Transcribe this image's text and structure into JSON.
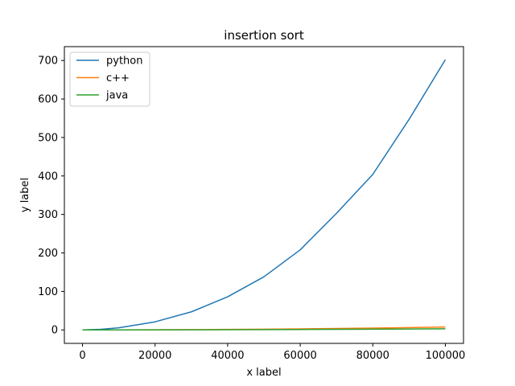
{
  "chart_data": {
    "type": "line",
    "title": "insertion sort",
    "xlabel": "x label",
    "ylabel": "y label",
    "xlim": [
      -5000,
      105000
    ],
    "ylim": [
      -35,
      736
    ],
    "xticks": [
      0,
      20000,
      40000,
      60000,
      80000,
      100000
    ],
    "yticks": [
      0,
      100,
      200,
      300,
      400,
      500,
      600,
      700
    ],
    "x": [
      0,
      5000,
      10000,
      20000,
      30000,
      40000,
      50000,
      60000,
      70000,
      80000,
      90000,
      100000
    ],
    "series": [
      {
        "name": "python",
        "color": "#1f77b4",
        "values": [
          0,
          1.5,
          5.5,
          21,
          47,
          86,
          138,
          208,
          303,
          404,
          547,
          702
        ]
      },
      {
        "name": "c++",
        "color": "#ff7f0e",
        "values": [
          0,
          0.02,
          0.07,
          0.3,
          0.7,
          1.2,
          1.9,
          2.7,
          3.7,
          4.8,
          6.1,
          7.5
        ]
      },
      {
        "name": "java",
        "color": "#2ca02c",
        "values": [
          0,
          0.01,
          0.04,
          0.15,
          0.3,
          0.5,
          0.8,
          1.1,
          1.5,
          1.9,
          2.4,
          2.9
        ]
      }
    ],
    "legend": {
      "position": "top-left"
    },
    "grid": false
  }
}
